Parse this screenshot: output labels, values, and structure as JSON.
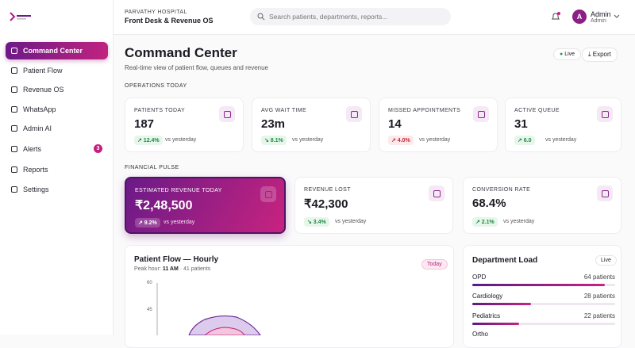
{
  "sidebar": {
    "nav": [
      {
        "label": "Command Center"
      },
      {
        "label": "Patient Flow"
      },
      {
        "label": "Revenue OS"
      },
      {
        "label": "WhatsApp"
      },
      {
        "label": "Admin AI"
      },
      {
        "label": "Alerts",
        "badge": "3"
      },
      {
        "label": "Reports"
      },
      {
        "label": "Settings"
      }
    ]
  },
  "header": {
    "hospital": "PARVATHY HOSPITAL",
    "product": "Front Desk & Revenue OS",
    "search_placeholder": "Search patients, departments, reports...",
    "user": {
      "avatar": "A",
      "name": "Admin",
      "role": "Admin"
    }
  },
  "page": {
    "title": "Command Center",
    "subtitle": "Real-time view of patient flow, queues and revenue",
    "live": "Live",
    "export": "Export"
  },
  "operations": {
    "heading": "OPERATIONS TODAY",
    "cards": [
      {
        "label": "PATIENTS TODAY",
        "value": "187",
        "change": "↗ 12.4%",
        "note": "vs yesterday"
      },
      {
        "label": "AVG WAIT TIME",
        "value": "23m",
        "change": "↘ 8.1%",
        "note": "vs yesterday"
      },
      {
        "label": "MISSED APPOINTMENTS",
        "value": "14",
        "change": "↗ 4.0%",
        "note": "vs yesterday"
      },
      {
        "label": "ACTIVE QUEUE",
        "value": "31",
        "change": "↗ 6.0",
        "note": "vs yesterday"
      }
    ]
  },
  "financial": {
    "heading": "FINANCIAL PULSE",
    "cards": [
      {
        "label": "ESTIMATED REVENUE TODAY",
        "value": "₹2,48,500",
        "change": "↗ 9.2%",
        "note": "vs yesterday"
      },
      {
        "label": "REVENUE LOST",
        "value": "₹42,300",
        "change": "↘ 3.4%",
        "note": "vs yesterday"
      },
      {
        "label": "CONVERSION RATE",
        "value": "68.4%",
        "change": "↗ 2.1%",
        "note": "vs yesterday"
      }
    ]
  },
  "patient_flow": {
    "title": "Patient Flow — Hourly",
    "peak_label": "Peak hour:",
    "peak_value": "11 AM",
    "peak_detail": "· 41 patients",
    "badge": "Today",
    "yticks": [
      "60",
      "45"
    ]
  },
  "department_load": {
    "title": "Department Load",
    "badge": "Live",
    "rows": [
      {
        "name": "OPD",
        "count": "64 patients"
      },
      {
        "name": "Cardiology",
        "count": "28 patients"
      },
      {
        "name": "Pediatrics",
        "count": "22 patients"
      },
      {
        "name": "Ortho"
      }
    ]
  }
}
